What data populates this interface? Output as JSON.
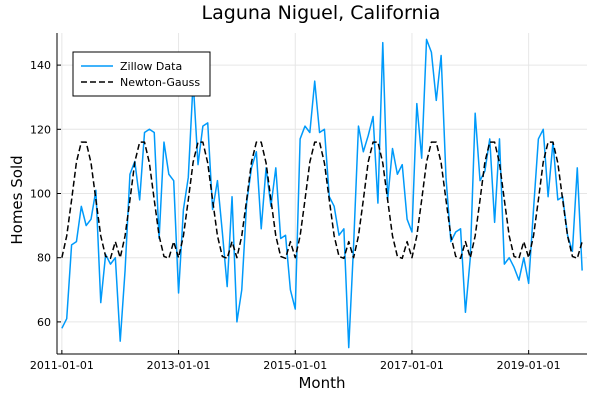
{
  "chart_data": {
    "type": "line",
    "title": "Laguna Niguel, California",
    "xlabel": "Month",
    "ylabel": "Homes Sold",
    "xlim": [
      "2011-01-01",
      "2019-12-01"
    ],
    "ylim": [
      50,
      150
    ],
    "x_ticks": [
      "2011-01-01",
      "2013-01-01",
      "2015-01-01",
      "2017-01-01",
      "2019-01-01"
    ],
    "y_ticks": [
      60,
      80,
      100,
      120,
      140
    ],
    "grid": true,
    "legend_position": "top-left",
    "x": [
      "2011-01",
      "2011-02",
      "2011-03",
      "2011-04",
      "2011-05",
      "2011-06",
      "2011-07",
      "2011-08",
      "2011-09",
      "2011-10",
      "2011-11",
      "2011-12",
      "2012-01",
      "2012-02",
      "2012-03",
      "2012-04",
      "2012-05",
      "2012-06",
      "2012-07",
      "2012-08",
      "2012-09",
      "2012-10",
      "2012-11",
      "2012-12",
      "2013-01",
      "2013-02",
      "2013-03",
      "2013-04",
      "2013-05",
      "2013-06",
      "2013-07",
      "2013-08",
      "2013-09",
      "2013-10",
      "2013-11",
      "2013-12",
      "2014-01",
      "2014-02",
      "2014-03",
      "2014-04",
      "2014-05",
      "2014-06",
      "2014-07",
      "2014-08",
      "2014-09",
      "2014-10",
      "2014-11",
      "2014-12",
      "2015-01",
      "2015-02",
      "2015-03",
      "2015-04",
      "2015-05",
      "2015-06",
      "2015-07",
      "2015-08",
      "2015-09",
      "2015-10",
      "2015-11",
      "2015-12",
      "2016-01",
      "2016-02",
      "2016-03",
      "2016-04",
      "2016-05",
      "2016-06",
      "2016-07",
      "2016-08",
      "2016-09",
      "2016-10",
      "2016-11",
      "2016-12",
      "2017-01",
      "2017-02",
      "2017-03",
      "2017-04",
      "2017-05",
      "2017-06",
      "2017-07",
      "2017-08",
      "2017-09",
      "2017-10",
      "2017-11",
      "2017-12",
      "2018-01",
      "2018-02",
      "2018-03",
      "2018-04",
      "2018-05",
      "2018-06",
      "2018-07",
      "2018-08",
      "2018-09",
      "2018-10",
      "2018-11",
      "2018-12",
      "2019-01",
      "2019-02",
      "2019-03",
      "2019-04",
      "2019-05",
      "2019-06",
      "2019-07",
      "2019-08",
      "2019-09",
      "2019-10",
      "2019-11",
      "2019-12"
    ],
    "series": [
      {
        "name": "Zillow Data",
        "color": "#009AFA",
        "style": "solid",
        "values": [
          58,
          61,
          84,
          85,
          96,
          90,
          92,
          101,
          66,
          81,
          78,
          80,
          54,
          76,
          106,
          110,
          98,
          119,
          120,
          119,
          86,
          116,
          106,
          104,
          69,
          95,
          105,
          135,
          109,
          121,
          122,
          95,
          104,
          88,
          71,
          99,
          60,
          70,
          97,
          108,
          113,
          89,
          108,
          96,
          108,
          86,
          87,
          70,
          64,
          117,
          121,
          119,
          135,
          119,
          120,
          99,
          96,
          87,
          89,
          52,
          84,
          121,
          113,
          118,
          124,
          97,
          147,
          98,
          114,
          106,
          109,
          92,
          88,
          128,
          111,
          148,
          144,
          129,
          143,
          105,
          85,
          88,
          89,
          63,
          80,
          125,
          104,
          107,
          117,
          91,
          117,
          78,
          80,
          77,
          73,
          80,
          72,
          95,
          117,
          120,
          99,
          116,
          98,
          99,
          87,
          82,
          108,
          76
        ]
      },
      {
        "name": "Newton-Gauss",
        "color": "#000000",
        "style": "dashed",
        "values": [
          80,
          86.8,
          98,
          109.8,
          116,
          116,
          109.5,
          98,
          86.8,
          80.4,
          79.8,
          85,
          80,
          86.8,
          98,
          109.8,
          116,
          116,
          109.5,
          98,
          86.8,
          80.4,
          79.8,
          85,
          80,
          86.8,
          98,
          109.8,
          116,
          116,
          109.5,
          98,
          86.8,
          80.4,
          79.8,
          85,
          80,
          86.8,
          98,
          109.8,
          116,
          116,
          109.5,
          98,
          86.8,
          80.4,
          79.8,
          85,
          80,
          86.8,
          98,
          109.8,
          116,
          116,
          109.5,
          98,
          86.8,
          80.4,
          79.8,
          85,
          80,
          86.8,
          98,
          109.8,
          116,
          116,
          109.5,
          98,
          86.8,
          80.4,
          79.8,
          85,
          80,
          86.8,
          98,
          109.8,
          116,
          116,
          109.5,
          98,
          86.8,
          80.4,
          79.8,
          85,
          80,
          86.8,
          98,
          109.8,
          116,
          116,
          109.5,
          98,
          86.8,
          80.4,
          79.8,
          85,
          80,
          86.8,
          98,
          109.8,
          116,
          116,
          109.5,
          98,
          86.8,
          80.4,
          79.8,
          85
        ]
      }
    ]
  }
}
